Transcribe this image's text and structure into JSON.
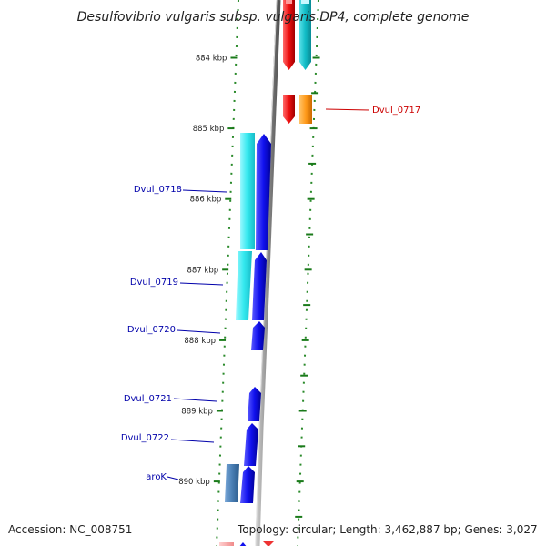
{
  "title": "Desulfovibrio vulgaris subsp. vulgaris DP4, complete genome",
  "footer": {
    "accession": "Accession: NC_008751",
    "stats": "Topology: circular; Length: 3,462,887 bp; Genes: 3,027"
  },
  "scale": {
    "unit": "kbp",
    "ticks": [
      {
        "value": 884,
        "label": "884 kbp"
      },
      {
        "value": 885,
        "label": "885 kbp"
      },
      {
        "value": 886,
        "label": "886 kbp"
      },
      {
        "value": 887,
        "label": "887 kbp"
      },
      {
        "value": 888,
        "label": "888 kbp"
      },
      {
        "value": 889,
        "label": "889 kbp"
      },
      {
        "value": 890,
        "label": "890 kbp"
      }
    ]
  },
  "genes": [
    {
      "label": "Dvul_0717",
      "color": "#cc0000"
    },
    {
      "label": "Dvul_0718",
      "color": "#0000aa"
    },
    {
      "label": "Dvul_0719",
      "color": "#0000aa"
    },
    {
      "label": "Dvul_0720",
      "color": "#0000aa"
    },
    {
      "label": "Dvul_0721",
      "color": "#0000aa"
    },
    {
      "label": "Dvul_0722",
      "color": "#0000aa"
    },
    {
      "label": "aroK",
      "color": "#0000aa"
    }
  ],
  "colors": {
    "forward_gene": "#1111ee",
    "reverse_gene": "#ee1111",
    "forward_cds": "#33e8ee",
    "reverse_cds": "#11bcc6",
    "operon": "#ff9a1a",
    "feature_steel": "#4a7fb5",
    "backbone": "#8a8a8a",
    "tick_dots": "#2a8a2a"
  }
}
